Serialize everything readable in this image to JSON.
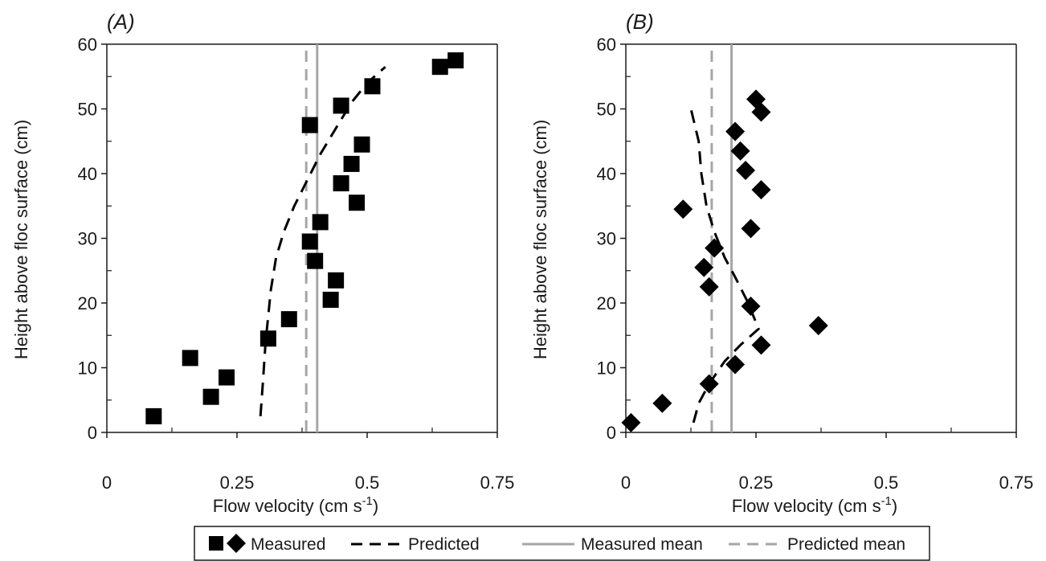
{
  "chart_data": [
    {
      "panel_label": "(A)",
      "type": "scatter",
      "xlabel": "Flow velocity (cm s",
      "xlabel_sup": "-1",
      "xlabel_end": ")",
      "ylabel": "Height above floc surface (cm)",
      "xlim": [
        0,
        0.75
      ],
      "ylim": [
        0,
        60
      ],
      "xticks": [
        "0",
        "0.25",
        "0.5",
        "0.75"
      ],
      "yticks": [
        "0",
        "10",
        "20",
        "30",
        "40",
        "50",
        "60"
      ],
      "marker": "square",
      "measured": [
        {
          "x": 0.09,
          "y": 2.5
        },
        {
          "x": 0.2,
          "y": 5.5
        },
        {
          "x": 0.23,
          "y": 8.5
        },
        {
          "x": 0.16,
          "y": 11.5
        },
        {
          "x": 0.31,
          "y": 14.5
        },
        {
          "x": 0.35,
          "y": 17.5
        },
        {
          "x": 0.43,
          "y": 20.5
        },
        {
          "x": 0.44,
          "y": 23.5
        },
        {
          "x": 0.4,
          "y": 26.5
        },
        {
          "x": 0.39,
          "y": 29.5
        },
        {
          "x": 0.41,
          "y": 32.5
        },
        {
          "x": 0.48,
          "y": 35.5
        },
        {
          "x": 0.45,
          "y": 38.5
        },
        {
          "x": 0.47,
          "y": 41.5
        },
        {
          "x": 0.49,
          "y": 44.5
        },
        {
          "x": 0.39,
          "y": 47.5
        },
        {
          "x": 0.45,
          "y": 50.5
        },
        {
          "x": 0.51,
          "y": 53.5
        },
        {
          "x": 0.64,
          "y": 56.5
        },
        {
          "x": 0.67,
          "y": 57.5
        }
      ],
      "predicted": [
        {
          "x": 0.295,
          "y": 2.5
        },
        {
          "x": 0.3,
          "y": 8
        },
        {
          "x": 0.305,
          "y": 14
        },
        {
          "x": 0.31,
          "y": 18
        },
        {
          "x": 0.315,
          "y": 22
        },
        {
          "x": 0.325,
          "y": 27
        },
        {
          "x": 0.34,
          "y": 31
        },
        {
          "x": 0.36,
          "y": 35
        },
        {
          "x": 0.385,
          "y": 39
        },
        {
          "x": 0.41,
          "y": 43
        },
        {
          "x": 0.44,
          "y": 47
        },
        {
          "x": 0.47,
          "y": 51
        },
        {
          "x": 0.5,
          "y": 54
        },
        {
          "x": 0.535,
          "y": 56.5
        }
      ],
      "measured_mean": 0.404,
      "predicted_mean": 0.383
    },
    {
      "panel_label": "(B)",
      "type": "scatter",
      "xlabel": "Flow velocity (cm s",
      "xlabel_sup": "-1",
      "xlabel_end": ")",
      "ylabel": "Height above floc surface (cm)",
      "xlim": [
        0,
        0.75
      ],
      "ylim": [
        0,
        60
      ],
      "xticks": [
        "0",
        "0.25",
        "0.5",
        "0.75"
      ],
      "yticks": [
        "0",
        "10",
        "20",
        "30",
        "40",
        "50",
        "60"
      ],
      "marker": "diamond",
      "measured": [
        {
          "x": 0.01,
          "y": 1.5
        },
        {
          "x": 0.07,
          "y": 4.5
        },
        {
          "x": 0.16,
          "y": 7.5
        },
        {
          "x": 0.21,
          "y": 10.5
        },
        {
          "x": 0.26,
          "y": 13.5
        },
        {
          "x": 0.37,
          "y": 16.5
        },
        {
          "x": 0.24,
          "y": 19.5
        },
        {
          "x": 0.16,
          "y": 22.5
        },
        {
          "x": 0.15,
          "y": 25.5
        },
        {
          "x": 0.17,
          "y": 28.5
        },
        {
          "x": 0.24,
          "y": 31.5
        },
        {
          "x": 0.11,
          "y": 34.5
        },
        {
          "x": 0.26,
          "y": 37.5
        },
        {
          "x": 0.23,
          "y": 40.5
        },
        {
          "x": 0.22,
          "y": 43.5
        },
        {
          "x": 0.21,
          "y": 46.5
        },
        {
          "x": 0.26,
          "y": 49.5
        },
        {
          "x": 0.25,
          "y": 51.5
        }
      ],
      "predicted": [
        {
          "x": 0.13,
          "y": 1.5
        },
        {
          "x": 0.14,
          "y": 4.5
        },
        {
          "x": 0.16,
          "y": 7.5
        },
        {
          "x": 0.19,
          "y": 11
        },
        {
          "x": 0.22,
          "y": 13.5
        },
        {
          "x": 0.255,
          "y": 16
        },
        {
          "x": 0.235,
          "y": 20
        },
        {
          "x": 0.21,
          "y": 24
        },
        {
          "x": 0.19,
          "y": 27
        },
        {
          "x": 0.17,
          "y": 31
        },
        {
          "x": 0.155,
          "y": 35
        },
        {
          "x": 0.145,
          "y": 40
        },
        {
          "x": 0.14,
          "y": 45
        },
        {
          "x": 0.125,
          "y": 50
        }
      ],
      "measured_mean": 0.203,
      "predicted_mean": 0.165
    }
  ],
  "legend": {
    "measured": "Measured",
    "predicted": "Predicted",
    "measured_mean": "Measured mean",
    "predicted_mean": "Predicted mean"
  },
  "colors": {
    "marker": "#000000",
    "predicted_line": "#000000",
    "measured_mean_line": "#a6a6a6",
    "predicted_mean_line": "#a6a6a6",
    "axis": "#1a1a1a"
  }
}
